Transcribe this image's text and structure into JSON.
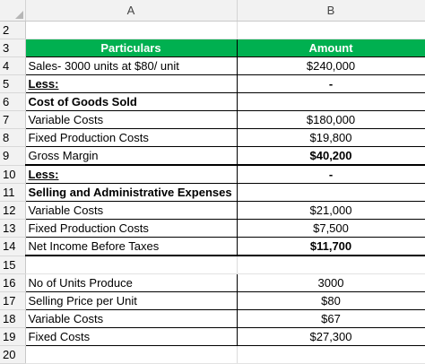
{
  "columns": {
    "a": "A",
    "b": "B"
  },
  "rows": {
    "r2": {
      "num": "2",
      "a": "",
      "b": ""
    },
    "r3": {
      "num": "3",
      "a": "Particulars",
      "b": "Amount"
    },
    "r4": {
      "num": "4",
      "a": "Sales- 3000 units at $80/ unit",
      "b": "$240,000"
    },
    "r5": {
      "num": "5",
      "a": "Less:",
      "b": "-"
    },
    "r6": {
      "num": "6",
      "a": "Cost of Goods Sold",
      "b": ""
    },
    "r7": {
      "num": "7",
      "a": "Variable Costs",
      "b": "$180,000"
    },
    "r8": {
      "num": "8",
      "a": "Fixed Production Costs",
      "b": "$19,800"
    },
    "r9": {
      "num": "9",
      "a": "Gross Margin",
      "b": "$40,200"
    },
    "r10": {
      "num": "10",
      "a": "Less:",
      "b": "-"
    },
    "r11": {
      "num": "11",
      "a": "Selling and Administrative Expenses",
      "b": ""
    },
    "r12": {
      "num": "12",
      "a": "Variable Costs",
      "b": "$21,000"
    },
    "r13": {
      "num": "13",
      "a": "Fixed Production Costs",
      "b": "$7,500"
    },
    "r14": {
      "num": "14",
      "a": "Net Income Before Taxes",
      "b": "$11,700"
    },
    "r15": {
      "num": "15",
      "a": "",
      "b": ""
    },
    "r16": {
      "num": "16",
      "a": "No of Units Produce",
      "b": "3000"
    },
    "r17": {
      "num": "17",
      "a": "Selling Price per Unit",
      "b": "$80"
    },
    "r18": {
      "num": "18",
      "a": "Variable Costs",
      "b": "$67"
    },
    "r19": {
      "num": "19",
      "a": "Fixed Costs",
      "b": "$27,300"
    },
    "r20": {
      "num": "20",
      "a": "",
      "b": ""
    }
  },
  "colors": {
    "header_fill": "#00b050",
    "header_text": "#ffffff",
    "gridline": "#dcdcdc"
  }
}
